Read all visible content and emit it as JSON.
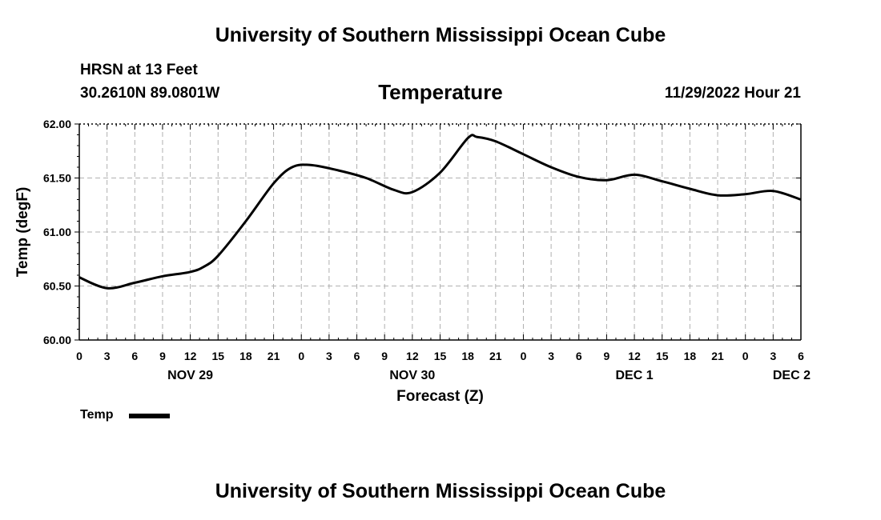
{
  "header": {
    "title": "University of Southern Mississippi Ocean Cube",
    "station": "HRSN at 13 Feet",
    "coordinates": "30.2610N  89.0801W",
    "variable": "Temperature",
    "datetime": "11/29/2022 Hour 21"
  },
  "footer": {
    "title": "University of Southern Mississippi Ocean Cube"
  },
  "legend": {
    "label": "Temp"
  },
  "chart_data": {
    "type": "line",
    "title": "Temperature",
    "xlabel": "Forecast (Z)",
    "ylabel": "Temp (degF)",
    "ylim": [
      60.0,
      62.0
    ],
    "yticks": [
      "60.00",
      "60.50",
      "61.00",
      "61.50",
      "62.00"
    ],
    "xlim": [
      0,
      78
    ],
    "xticks": [
      "0",
      "3",
      "6",
      "9",
      "12",
      "15",
      "18",
      "21",
      "0",
      "3",
      "6",
      "9",
      "12",
      "15",
      "18",
      "21",
      "0",
      "3",
      "6",
      "9",
      "12",
      "15",
      "18",
      "21",
      "0",
      "3",
      "6"
    ],
    "date_labels": [
      {
        "label": "NOV 29",
        "x": 12
      },
      {
        "label": "NOV 30",
        "x": 36
      },
      {
        "label": "DEC 1",
        "x": 60
      },
      {
        "label": "DEC 2",
        "x": 77
      }
    ],
    "grid": true,
    "series": [
      {
        "name": "Temp",
        "color": "#000000",
        "x": [
          0,
          3,
          6,
          9,
          12,
          13.5,
          15,
          18,
          21,
          23,
          25,
          28,
          31,
          34,
          36,
          39,
          42,
          43,
          45,
          48,
          51,
          54,
          57,
          60,
          63,
          66,
          69,
          72,
          75,
          78
        ],
        "y": [
          60.58,
          60.48,
          60.53,
          60.59,
          60.63,
          60.68,
          60.78,
          61.1,
          61.45,
          61.6,
          61.62,
          61.57,
          61.5,
          61.39,
          61.37,
          61.55,
          61.87,
          61.88,
          61.84,
          61.72,
          61.6,
          61.51,
          61.48,
          61.53,
          61.47,
          61.4,
          61.34,
          61.35,
          61.38,
          61.3
        ]
      }
    ]
  }
}
